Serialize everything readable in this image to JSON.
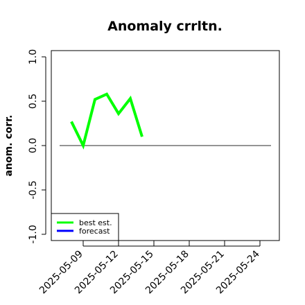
{
  "chart_data": {
    "type": "line",
    "title": "Anomaly crrltn.",
    "xlabel": "",
    "ylabel": "anom. corr.",
    "ylim": [
      -1.0,
      1.0
    ],
    "yticks": [
      "-1.0",
      "-0.5",
      "0.0",
      "0.5",
      "1.0"
    ],
    "yticks_values": [
      -1.0,
      -0.5,
      0.0,
      0.5,
      1.0
    ],
    "xticks": [
      "2025-05-09",
      "2025-05-12",
      "2025-05-15",
      "2025-05-18",
      "2025-05-21",
      "2025-05-24"
    ],
    "highlighted_xtick": "2025-05-15",
    "highlight_color": "#228B22",
    "grid": false,
    "reference_line": 0.0,
    "legend_position": "bottom-left",
    "series": [
      {
        "name": "best est.",
        "color": "#00ff00",
        "x": [
          "2025-05-08",
          "2025-05-09",
          "2025-05-10",
          "2025-05-11",
          "2025-05-12",
          "2025-05-13",
          "2025-05-14"
        ],
        "values": [
          0.27,
          0.0,
          0.52,
          0.58,
          0.36,
          0.53,
          0.1
        ]
      },
      {
        "name": "forecast",
        "color": "#0000ff",
        "x": [],
        "values": []
      }
    ]
  }
}
